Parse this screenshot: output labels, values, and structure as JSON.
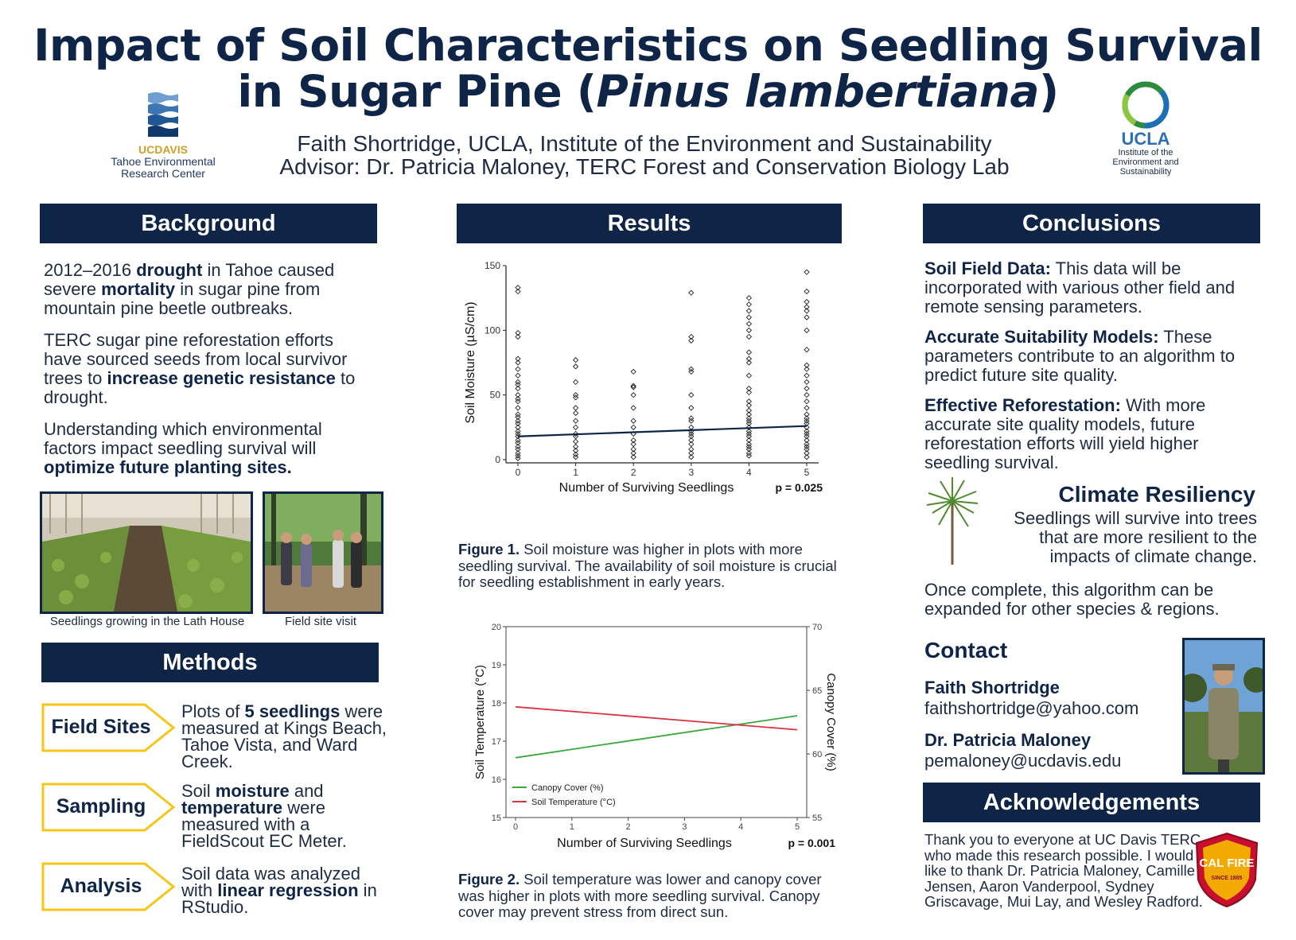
{
  "title": {
    "line1": "Impact of Soil Characteristics on Seedling Survival",
    "line2_prefix": "in Sugar Pine (",
    "line2_italic": "Pinus lambertiana",
    "line2_suffix": ")"
  },
  "authors": {
    "line1": "Faith Shortridge, UCLA, Institute of the Environment and Sustainability",
    "line2": "Advisor: Dr. Patricia Maloney, TERC Forest and Conservation Biology Lab"
  },
  "logos": {
    "ucdavis": {
      "brand_uc": "UC",
      "brand_davis": "DAVIS",
      "line1": "Tahoe Environmental",
      "line2": "Research Center"
    },
    "ucla": {
      "brand": "UCLA",
      "line1": "Institute of the",
      "line2": "Environment and",
      "line3": "Sustainability"
    },
    "calfire": {
      "text": "CAL FIRE",
      "small": "SINCE 1885"
    }
  },
  "colors": {
    "navy": "#0f2548",
    "gold": "#f5c518",
    "green_line": "#3aa93a",
    "red_line": "#d9343f"
  },
  "background": {
    "header": "Background",
    "p1": {
      "t1": "2012–2016 ",
      "b1": "drought",
      "t2": " in Tahoe caused severe ",
      "b2": "mortality",
      "t3": " in sugar pine from mountain pine beetle outbreaks."
    },
    "p2": {
      "t1": "TERC sugar pine reforestation efforts have sourced seeds from local survivor trees to ",
      "b1": "increase genetic resistance",
      "t2": " to drought."
    },
    "p3": {
      "t1": "Understanding which environmental factors impact seedling survival will ",
      "b1": "optimize future planting sites."
    },
    "photo1_caption": "Seedlings growing in the Lath House",
    "photo2_caption": "Field site visit"
  },
  "methods": {
    "header": "Methods",
    "items": [
      {
        "label": "Field Sites",
        "t1": "Plots of ",
        "b1": "5 seedlings",
        "t2": " were measured at Kings Beach, Tahoe Vista, and Ward Creek.",
        "b2": "",
        "t3": ""
      },
      {
        "label": "Sampling",
        "t1": "Soil ",
        "b1": "moisture",
        "t2": " and ",
        "b2": "temperature",
        "t3": " were measured with a FieldScout EC Meter."
      },
      {
        "label": "Analysis",
        "t1": "Soil data was analyzed with ",
        "b1": "linear regression",
        "t2": " in RStudio.",
        "b2": "",
        "t3": ""
      }
    ]
  },
  "results": {
    "header": "Results",
    "fig1_caption_bold": "Figure 1.",
    "fig1_caption": " Soil moisture was higher in plots with more seedling survival. The availability of soil moisture is crucial for seedling establishment in early years.",
    "fig2_caption_bold": "Figure 2.",
    "fig2_caption": " Soil temperature was lower and canopy cover was higher in plots with more seedling survival. Canopy cover may prevent stress from direct sun."
  },
  "chart_data": [
    {
      "type": "scatter",
      "title": "",
      "xlabel": "Number of Surviving Seedlings",
      "ylabel": "Soil Moisture (µS/cm)",
      "annotation": "p = 0.025",
      "xlim": [
        0,
        5
      ],
      "ylim": [
        0,
        150
      ],
      "x_ticks": [
        "0",
        "1",
        "2",
        "3",
        "4",
        "5"
      ],
      "y_ticks": [
        "0",
        "50",
        "100",
        "150"
      ],
      "series": [
        {
          "x": 0,
          "values": [
            133,
            130,
            98,
            95,
            78,
            75,
            70,
            65,
            60,
            58,
            55,
            50,
            47,
            45,
            40,
            35,
            33,
            30,
            28,
            25,
            22,
            20,
            18,
            15,
            13,
            10,
            8,
            5,
            3,
            1
          ]
        },
        {
          "x": 1,
          "values": [
            77,
            72,
            60,
            50,
            48,
            40,
            36,
            30,
            25,
            20,
            18,
            14,
            10,
            7,
            4,
            2
          ]
        },
        {
          "x": 2,
          "values": [
            68,
            57,
            56,
            50,
            40,
            30,
            25,
            20,
            15,
            12,
            8,
            5,
            2
          ]
        },
        {
          "x": 3,
          "values": [
            129,
            95,
            92,
            70,
            68,
            50,
            40,
            32,
            30,
            25,
            22,
            20,
            18,
            15,
            12,
            8,
            5,
            2
          ]
        },
        {
          "x": 4,
          "values": [
            125,
            120,
            115,
            110,
            105,
            100,
            95,
            83,
            78,
            75,
            65,
            55,
            52,
            45,
            42,
            38,
            35,
            32,
            30,
            28,
            25,
            22,
            20,
            18,
            15,
            12,
            10,
            8,
            5,
            3
          ]
        },
        {
          "x": 5,
          "values": [
            145,
            130,
            122,
            118,
            115,
            110,
            100,
            85,
            73,
            70,
            65,
            60,
            55,
            50,
            45,
            40,
            35,
            32,
            30,
            28,
            25,
            22,
            20,
            18,
            15,
            12,
            10,
            8,
            5,
            2
          ]
        }
      ],
      "regression": {
        "x": [
          0,
          5
        ],
        "y": [
          18,
          26
        ]
      }
    },
    {
      "type": "line",
      "title": "",
      "xlabel": "Number of Surviving Seedlings",
      "ylabel": "Soil Temperature (°C)",
      "ylabel_right": "Canopy Cover (%)",
      "annotation": "p = 0.001",
      "xlim": [
        0,
        5
      ],
      "ylim": [
        15,
        20
      ],
      "ylim_right": [
        55,
        70
      ],
      "x_ticks": [
        "0",
        "1",
        "2",
        "3",
        "4",
        "5"
      ],
      "y_ticks": [
        "15",
        "16",
        "17",
        "18",
        "19",
        "20"
      ],
      "y_ticks_right": [
        "55",
        "60",
        "65",
        "70"
      ],
      "legend_position": "bottom-left",
      "series": [
        {
          "name": "Canopy Cover (%)",
          "axis": "right",
          "x": [
            0,
            5
          ],
          "y": [
            59.7,
            63
          ]
        },
        {
          "name": "Soil Temperature (°C)",
          "axis": "left",
          "x": [
            0,
            5
          ],
          "y": [
            17.9,
            17.3
          ]
        }
      ]
    }
  ],
  "conclusions": {
    "header": "Conclusions",
    "items": [
      {
        "bold": "Soil Field Data:",
        "text": " This data will be incorporated with various other field and remote sensing parameters."
      },
      {
        "bold": "Accurate Suitability Models:",
        "text": " These parameters contribute to an algorithm to predict future site quality."
      },
      {
        "bold": "Effective Reforestation:",
        "text": " With more accurate site quality models, future reforestation efforts will yield higher seedling survival."
      }
    ],
    "climate_title": "Climate Resiliency",
    "climate_text": "Seedlings will survive into trees that are more resilient to the impacts of climate change.",
    "closing": "Once complete, this algorithm can be expanded for other species & regions."
  },
  "contact": {
    "header": "Contact",
    "people": [
      {
        "name": "Faith Shortridge",
        "email": "faithshortridge@yahoo.com"
      },
      {
        "name": "Dr. Patricia Maloney",
        "email": "pemaloney@ucdavis.edu"
      }
    ]
  },
  "acknowledgements": {
    "header": "Acknowledgements",
    "text": "Thank you to everyone at UC Davis TERC who made this research possible. I would like to thank Dr. Patricia Maloney, Camille Jensen, Aaron Vanderpool, Sydney Griscavage, Mui Lay, and Wesley Radford."
  }
}
